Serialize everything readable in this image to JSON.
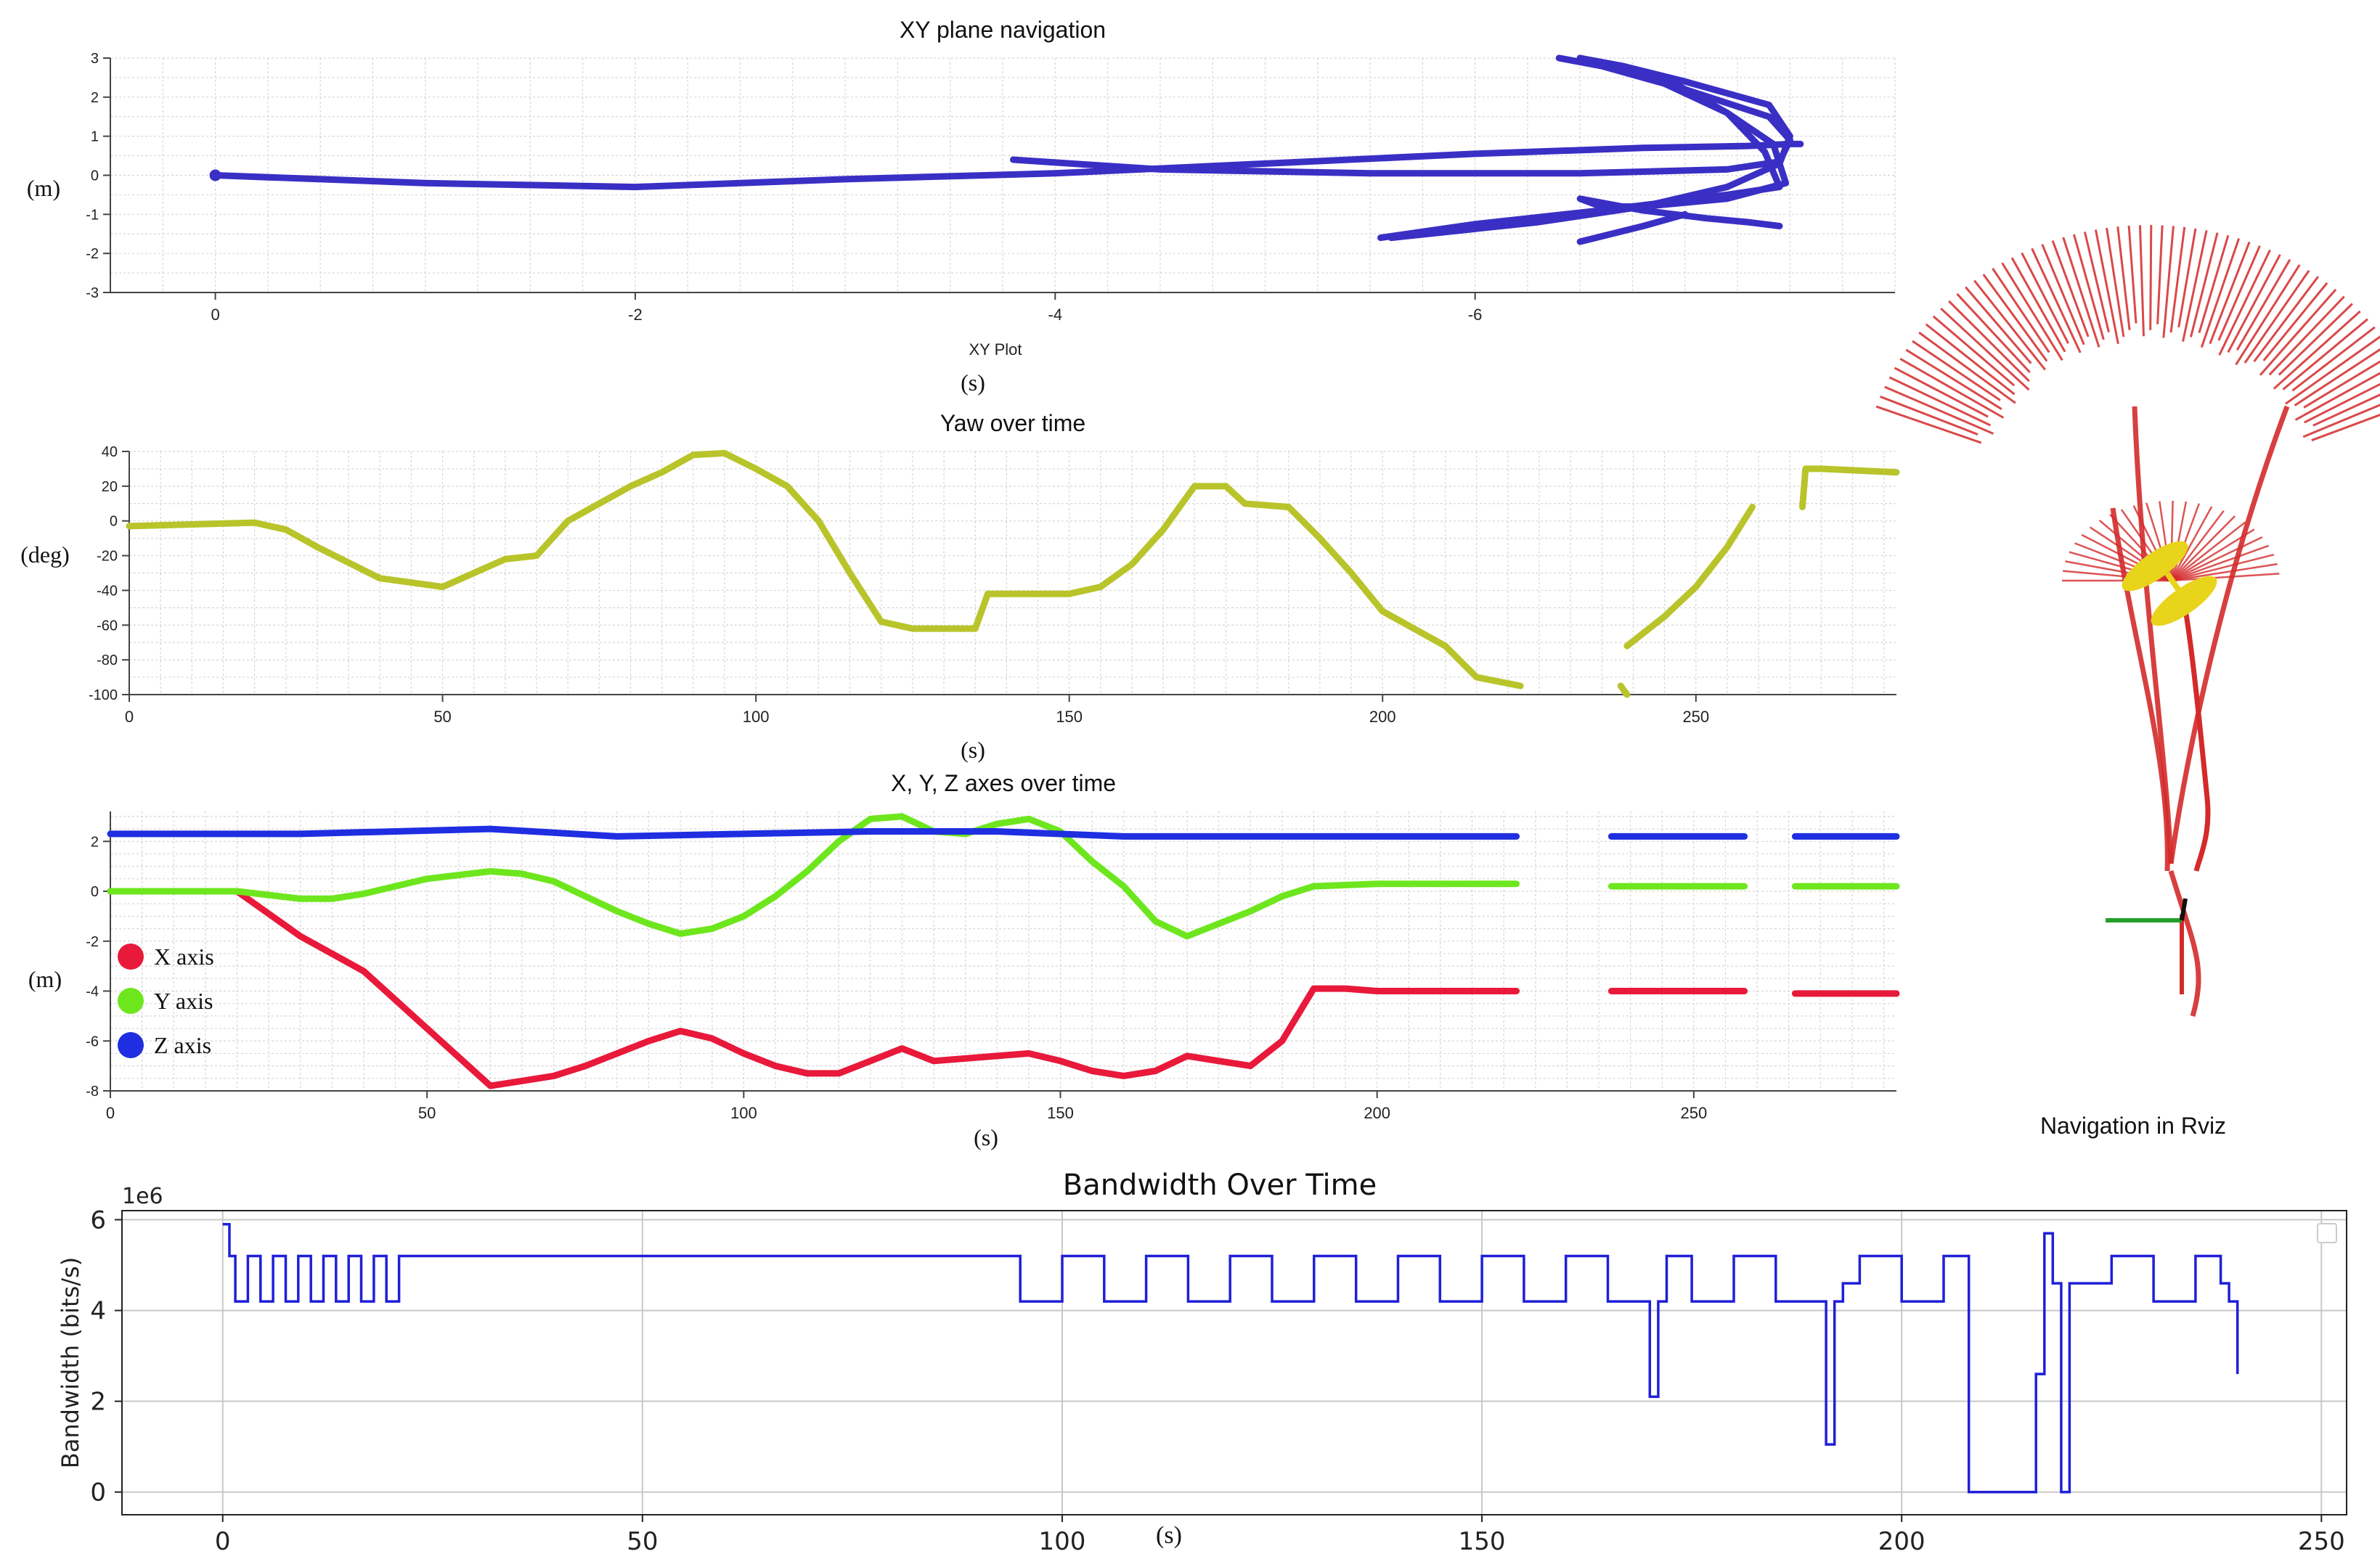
{
  "chart_data": [
    {
      "type": "scatter",
      "title": "XY plane navigation",
      "xlabel": "XY Plot",
      "ylabel": "(m)",
      "below_label": "(s)",
      "xlim": [
        0.5,
        -8.0
      ],
      "ylim": [
        -3,
        3
      ],
      "x_ticks": [
        0,
        -2,
        -4,
        -6
      ],
      "y_ticks": [
        3,
        2,
        1,
        0,
        -1,
        -2,
        -3
      ],
      "grid": true,
      "color": "#3a2fc4",
      "series": [
        {
          "x": [
            0,
            -1,
            -2,
            -3,
            -4,
            -5,
            -6,
            -6.8,
            -7.3,
            -7.5,
            -7.55
          ],
          "y": [
            0,
            -0.2,
            -0.3,
            -0.1,
            0.05,
            0.3,
            0.55,
            0.7,
            0.75,
            0.8,
            0.8
          ]
        },
        {
          "x": [
            -3.8,
            -4.5,
            -5.5,
            -6.5,
            -7.2,
            -7.45,
            -7.5,
            -7.4,
            -7.0,
            -6.6,
            -6.4
          ],
          "y": [
            0.4,
            0.15,
            0.05,
            0.05,
            0.15,
            0.35,
            0.9,
            1.5,
            2.2,
            2.8,
            3.0
          ]
        },
        {
          "x": [
            -6.4,
            -6.8,
            -7.2,
            -7.38,
            -7.45,
            -7.2,
            -6.6,
            -6.0,
            -5.55
          ],
          "y": [
            3.0,
            2.6,
            1.6,
            0.6,
            -0.3,
            -0.5,
            -0.9,
            -1.25,
            -1.6
          ]
        },
        {
          "x": [
            -5.6,
            -6.3,
            -6.8,
            -7.2,
            -7.45,
            -7.5,
            -7.4,
            -7.0,
            -6.7,
            -6.5
          ],
          "y": [
            -1.6,
            -1.2,
            -0.8,
            -0.3,
            0.3,
            1.0,
            1.8,
            2.4,
            2.8,
            3.0
          ]
        },
        {
          "x": [
            -6.5,
            -6.9,
            -7.2,
            -7.42,
            -7.48,
            -7.2,
            -6.8,
            -6.6,
            -6.5,
            -6.8,
            -7.1,
            -7.3,
            -7.45
          ],
          "y": [
            3.0,
            2.5,
            1.6,
            0.8,
            -0.2,
            -0.6,
            -0.8,
            -0.8,
            -0.6,
            -0.9,
            -1.1,
            -1.2,
            -1.3
          ]
        },
        {
          "x": [
            -7.0,
            -6.8,
            -6.5
          ],
          "y": [
            -1.0,
            -1.3,
            -1.7
          ]
        }
      ]
    },
    {
      "type": "line",
      "title": "Yaw over time",
      "xlabel": "(s)",
      "ylabel": "(deg)",
      "xlim": [
        0,
        282
      ],
      "ylim": [
        -100,
        40
      ],
      "x_ticks": [
        0,
        50,
        100,
        150,
        200,
        250
      ],
      "y_ticks": [
        40,
        20,
        0,
        -20,
        -40,
        -60,
        -80,
        -100
      ],
      "grid": true,
      "color": "#b8c42a",
      "segments": [
        {
          "x": [
            0,
            10,
            20,
            25,
            30,
            40,
            50,
            55,
            60,
            65,
            70,
            80,
            85,
            90,
            95,
            100,
            105,
            110,
            115,
            120,
            125,
            130,
            135,
            137,
            140,
            150,
            155,
            160,
            165,
            170,
            175,
            178,
            185,
            190,
            195,
            200,
            205,
            210,
            215,
            222
          ],
          "y": [
            -3,
            -2,
            -1,
            -5,
            -15,
            -33,
            -38,
            -30,
            -22,
            -20,
            0,
            20,
            28,
            38,
            39,
            30,
            20,
            0,
            -30,
            -58,
            -62,
            -62,
            -62,
            -42,
            -42,
            -42,
            -38,
            -25,
            -5,
            20,
            20,
            10,
            8,
            -10,
            -30,
            -52,
            -62,
            -72,
            -90,
            -95
          ]
        },
        {
          "x": [
            238,
            239
          ],
          "y": [
            -95,
            -100
          ]
        },
        {
          "x": [
            239,
            245,
            250,
            255,
            259
          ],
          "y": [
            -72,
            -55,
            -38,
            -15,
            8
          ]
        },
        {
          "x": [
            267,
            267.5,
            270,
            282
          ],
          "y": [
            8,
            30,
            30,
            28
          ]
        }
      ]
    },
    {
      "type": "line",
      "title": "X, Y, Z axes over time",
      "xlabel": "(s)",
      "ylabel": "(m)",
      "xlim": [
        0,
        282
      ],
      "ylim": [
        -8,
        3.2
      ],
      "x_ticks": [
        0,
        50,
        100,
        150,
        200,
        250
      ],
      "y_ticks": [
        2,
        0,
        -2,
        -4,
        -6,
        -8
      ],
      "grid": true,
      "legend_position": "left",
      "gaps": [
        [
          222,
          237
        ],
        [
          258,
          266
        ]
      ],
      "series": [
        {
          "name": "X axis",
          "color": "#e8193a",
          "x": [
            0,
            10,
            20,
            30,
            40,
            50,
            60,
            65,
            70,
            75,
            80,
            85,
            90,
            95,
            100,
            105,
            110,
            115,
            120,
            125,
            130,
            140,
            145,
            150,
            155,
            160,
            165,
            170,
            175,
            180,
            185,
            190,
            195,
            200,
            222,
            237,
            258,
            266,
            282
          ],
          "y": [
            0,
            0,
            0,
            -1.8,
            -3.2,
            -5.5,
            -7.8,
            -7.6,
            -7.4,
            -7.0,
            -6.5,
            -6.0,
            -5.6,
            -5.9,
            -6.5,
            -7.0,
            -7.3,
            -7.3,
            -6.8,
            -6.3,
            -6.8,
            -6.6,
            -6.5,
            -6.8,
            -7.2,
            -7.4,
            -7.2,
            -6.6,
            -6.8,
            -7.0,
            -6.0,
            -3.9,
            -3.9,
            -4.0,
            -4.0,
            -4.0,
            -4.0,
            -4.1,
            -4.1
          ]
        },
        {
          "name": "Y axis",
          "color": "#6ee61e",
          "x": [
            0,
            20,
            30,
            35,
            40,
            50,
            60,
            65,
            70,
            75,
            80,
            85,
            90,
            95,
            100,
            105,
            110,
            115,
            120,
            125,
            130,
            135,
            140,
            145,
            150,
            155,
            160,
            165,
            170,
            175,
            180,
            185,
            190,
            200,
            222,
            237,
            258,
            266,
            282
          ],
          "y": [
            0,
            0,
            -0.3,
            -0.3,
            -0.1,
            0.5,
            0.8,
            0.7,
            0.4,
            -0.2,
            -0.8,
            -1.3,
            -1.7,
            -1.5,
            -1.0,
            -0.2,
            0.8,
            2.0,
            2.9,
            3.0,
            2.4,
            2.3,
            2.7,
            2.9,
            2.4,
            1.2,
            0.2,
            -1.2,
            -1.8,
            -1.3,
            -0.8,
            -0.2,
            0.2,
            0.3,
            0.3,
            0.2,
            0.2,
            0.2,
            0.2
          ]
        },
        {
          "name": "Z axis",
          "color": "#1f2ee0",
          "x": [
            0,
            30,
            60,
            80,
            100,
            120,
            140,
            160,
            180,
            200,
            222,
            237,
            258,
            266,
            282
          ],
          "y": [
            2.3,
            2.3,
            2.5,
            2.2,
            2.3,
            2.4,
            2.4,
            2.2,
            2.2,
            2.2,
            2.2,
            2.2,
            2.2,
            2.2,
            2.2
          ]
        }
      ]
    },
    {
      "type": "line",
      "title": "Bandwidth Over Time",
      "xlabel": "(s)",
      "ylabel": "Bandwidth (bits/s)",
      "offset_label": "1e6",
      "xlim": [
        -12,
        253
      ],
      "ylim": [
        -0.5,
        6.2
      ],
      "x_ticks": [
        0,
        50,
        100,
        150,
        200,
        250
      ],
      "y_ticks": [
        0,
        2,
        4,
        6
      ],
      "grid": true,
      "color": "#1f1fd8",
      "x": [
        0,
        0.8,
        1.5,
        3,
        4.5,
        6,
        7.5,
        9,
        10.5,
        12,
        13.5,
        15,
        16.5,
        18,
        19.5,
        21,
        95,
        100,
        105,
        110,
        115,
        120,
        125,
        130,
        135,
        140,
        145,
        150,
        155,
        160,
        165,
        169,
        170,
        171,
        172,
        175,
        180,
        185,
        190,
        191,
        192,
        193,
        195,
        200,
        205,
        207,
        208,
        215,
        216,
        217,
        218,
        219,
        220,
        225,
        230,
        235,
        238,
        239,
        240
      ],
      "y": [
        5.9,
        5.2,
        4.2,
        5.2,
        4.2,
        5.2,
        4.2,
        5.2,
        4.2,
        5.2,
        4.2,
        5.2,
        4.2,
        5.2,
        4.2,
        5.2,
        4.2,
        5.2,
        4.2,
        5.2,
        4.2,
        5.2,
        4.2,
        5.2,
        4.2,
        5.2,
        4.2,
        5.2,
        4.2,
        5.2,
        4.2,
        4.2,
        2.1,
        4.2,
        5.2,
        4.2,
        5.2,
        4.2,
        4.2,
        1.05,
        4.2,
        4.6,
        5.2,
        4.2,
        5.2,
        5.2,
        0,
        0,
        2.6,
        5.7,
        4.6,
        0,
        4.6,
        5.2,
        4.2,
        5.2,
        4.6,
        4.2,
        2.6
      ]
    }
  ],
  "rviz_caption": "Navigation in Rviz",
  "colors": {
    "rviz_red": "#d42a2a",
    "rviz_yellow": "#e8d41a",
    "rviz_green": "#22a02a",
    "grid": "#c8c8c8",
    "axis": "#444444"
  }
}
